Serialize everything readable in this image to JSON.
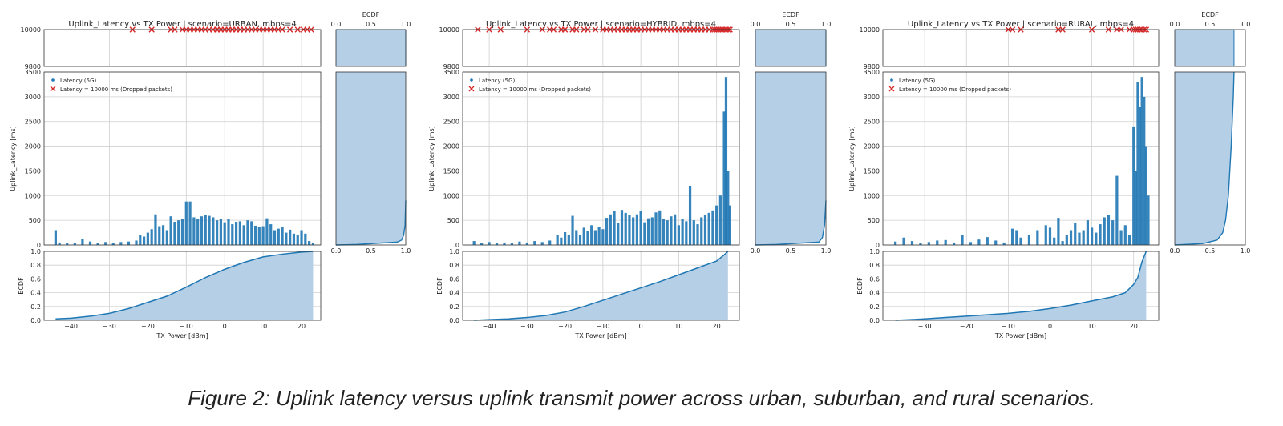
{
  "figure": {
    "caption": "Figure 2: Uplink latency versus uplink transmit power across urban, suburban, and rural scenarios."
  },
  "colors": {
    "series": "#1f77b4",
    "dropped": "#d62728",
    "ecdf_fill": "#b4cfe6",
    "ecdf_line": "#1f77b4",
    "grid": "#d0d0d0"
  },
  "chart_data": [
    {
      "type": "scatter",
      "title": "Uplink_Latency vs TX Power  |  scenario=URBAN, mbps=4",
      "xlabel": "TX Power [dBm]",
      "ylabel": "Uplink_Latency [ms]",
      "top_ylim": [
        9800,
        10000
      ],
      "top_yticks": [
        9800,
        10000
      ],
      "ylim": [
        0,
        3500
      ],
      "yticks": [
        0,
        500,
        1000,
        1500,
        2000,
        2500,
        3000,
        3500
      ],
      "xlim": [
        -47,
        25
      ],
      "xticks": [
        -40,
        -30,
        -20,
        -10,
        0,
        10,
        20
      ],
      "legend": [
        "Latency (5G)",
        "Latency = 10000 ms (Dropped packets)"
      ],
      "legend_position": "top-left",
      "grid": true,
      "latency_points": [
        [
          -44,
          300
        ],
        [
          -43,
          50
        ],
        [
          -41,
          40
        ],
        [
          -39,
          40
        ],
        [
          -37,
          120
        ],
        [
          -35,
          70
        ],
        [
          -33,
          40
        ],
        [
          -31,
          60
        ],
        [
          -29,
          40
        ],
        [
          -27,
          60
        ],
        [
          -25,
          70
        ],
        [
          -23,
          90
        ],
        [
          -22,
          200
        ],
        [
          -21,
          170
        ],
        [
          -20,
          250
        ],
        [
          -19,
          320
        ],
        [
          -18,
          620
        ],
        [
          -17,
          380
        ],
        [
          -16,
          400
        ],
        [
          -15,
          300
        ],
        [
          -14,
          580
        ],
        [
          -13,
          470
        ],
        [
          -12,
          500
        ],
        [
          -11,
          520
        ],
        [
          -10,
          880
        ],
        [
          -9,
          880
        ],
        [
          -8,
          560
        ],
        [
          -7,
          520
        ],
        [
          -6,
          580
        ],
        [
          -5,
          600
        ],
        [
          -4,
          590
        ],
        [
          -3,
          560
        ],
        [
          -2,
          500
        ],
        [
          -1,
          520
        ],
        [
          0,
          460
        ],
        [
          1,
          520
        ],
        [
          2,
          420
        ],
        [
          3,
          470
        ],
        [
          4,
          480
        ],
        [
          5,
          400
        ],
        [
          6,
          500
        ],
        [
          7,
          480
        ],
        [
          8,
          390
        ],
        [
          9,
          360
        ],
        [
          10,
          380
        ],
        [
          11,
          540
        ],
        [
          12,
          420
        ],
        [
          13,
          300
        ],
        [
          14,
          330
        ],
        [
          15,
          370
        ],
        [
          16,
          250
        ],
        [
          17,
          310
        ],
        [
          18,
          230
        ],
        [
          19,
          200
        ],
        [
          20,
          300
        ],
        [
          21,
          230
        ],
        [
          22,
          80
        ],
        [
          23,
          50
        ]
      ],
      "dropped_x": [
        -24,
        -19,
        -14,
        -13,
        -11,
        -10,
        -9,
        -8,
        -7,
        -6,
        -5,
        -4,
        -3,
        -2,
        -1,
        0,
        1,
        2,
        3,
        4,
        5,
        6,
        7,
        8,
        9,
        10,
        11,
        12,
        13,
        14,
        15,
        17,
        19,
        20.5,
        21.5,
        22.5
      ],
      "x_ecdf": [
        [
          -44,
          0.02
        ],
        [
          -40,
          0.03
        ],
        [
          -35,
          0.06
        ],
        [
          -30,
          0.1
        ],
        [
          -25,
          0.17
        ],
        [
          -20,
          0.26
        ],
        [
          -15,
          0.35
        ],
        [
          -10,
          0.48
        ],
        [
          -5,
          0.62
        ],
        [
          0,
          0.74
        ],
        [
          5,
          0.84
        ],
        [
          10,
          0.92
        ],
        [
          15,
          0.96
        ],
        [
          20,
          0.99
        ],
        [
          23,
          1.0
        ]
      ],
      "y_ecdf": [
        [
          0,
          0
        ],
        [
          0.3,
          10
        ],
        [
          0.88,
          60
        ],
        [
          0.94,
          100
        ],
        [
          0.97,
          200
        ],
        [
          0.99,
          400
        ],
        [
          1.0,
          900
        ]
      ],
      "y_ecdf_topfill": 1.0,
      "ecdf_label": "ECDF",
      "ecdf_ticks": [
        0.0,
        0.5,
        1.0
      ],
      "ecdf_yticks": [
        0.0,
        0.2,
        0.4,
        0.6,
        0.8,
        1.0
      ]
    },
    {
      "type": "scatter",
      "title": "Uplink_Latency vs TX Power  |  scenario=HYBRID, mbps=4",
      "xlabel": "TX Power [dBm]",
      "ylabel": "Uplink_Latency [ms]",
      "top_ylim": [
        9800,
        10000
      ],
      "top_yticks": [
        9800,
        10000
      ],
      "ylim": [
        0,
        3500
      ],
      "yticks": [
        0,
        500,
        1000,
        1500,
        2000,
        2500,
        3000,
        3500
      ],
      "xlim": [
        -47,
        26
      ],
      "xticks": [
        -40,
        -30,
        -20,
        -10,
        0,
        10,
        20
      ],
      "legend": [
        "Latency (5G)",
        "Latency = 10000 ms (Dropped packets)"
      ],
      "legend_position": "top-left",
      "grid": true,
      "latency_points": [
        [
          -44,
          80
        ],
        [
          -42,
          40
        ],
        [
          -40,
          60
        ],
        [
          -38,
          40
        ],
        [
          -36,
          50
        ],
        [
          -34,
          40
        ],
        [
          -32,
          70
        ],
        [
          -30,
          50
        ],
        [
          -28,
          80
        ],
        [
          -26,
          60
        ],
        [
          -24,
          90
        ],
        [
          -22,
          200
        ],
        [
          -21,
          150
        ],
        [
          -20,
          260
        ],
        [
          -19,
          200
        ],
        [
          -18,
          590
        ],
        [
          -17,
          300
        ],
        [
          -16,
          200
        ],
        [
          -15,
          350
        ],
        [
          -14,
          280
        ],
        [
          -13,
          400
        ],
        [
          -12,
          300
        ],
        [
          -11,
          370
        ],
        [
          -10,
          320
        ],
        [
          -9,
          550
        ],
        [
          -8,
          620
        ],
        [
          -7,
          690
        ],
        [
          -6,
          440
        ],
        [
          -5,
          710
        ],
        [
          -4,
          650
        ],
        [
          -3,
          600
        ],
        [
          -2,
          560
        ],
        [
          -1,
          620
        ],
        [
          0,
          680
        ],
        [
          1,
          460
        ],
        [
          2,
          540
        ],
        [
          3,
          560
        ],
        [
          4,
          660
        ],
        [
          5,
          700
        ],
        [
          6,
          530
        ],
        [
          7,
          500
        ],
        [
          8,
          580
        ],
        [
          9,
          620
        ],
        [
          10,
          400
        ],
        [
          11,
          520
        ],
        [
          12,
          480
        ],
        [
          13,
          1200
        ],
        [
          14,
          500
        ],
        [
          15,
          420
        ],
        [
          16,
          560
        ],
        [
          17,
          600
        ],
        [
          18,
          650
        ],
        [
          19,
          700
        ],
        [
          20,
          800
        ],
        [
          21,
          1000
        ],
        [
          22,
          2700
        ],
        [
          22.5,
          3400
        ],
        [
          23,
          1500
        ],
        [
          23.5,
          800
        ]
      ],
      "dropped_x": [
        -43,
        -40,
        -37,
        -30,
        -26,
        -24,
        -23,
        -21,
        -20,
        -18,
        -17,
        -15,
        -14,
        -12,
        -10,
        -9,
        -8,
        -7,
        -6,
        -5,
        -4,
        -3,
        -2,
        -1,
        0,
        1,
        2,
        3,
        4,
        5,
        6,
        7,
        8,
        9,
        10,
        11,
        12,
        13,
        14,
        15,
        16,
        17,
        18,
        19,
        19.5,
        20,
        20.5,
        21,
        21.5,
        22,
        22.5,
        23,
        23.5
      ],
      "x_ecdf": [
        [
          -44,
          0.0
        ],
        [
          -40,
          0.01
        ],
        [
          -35,
          0.02
        ],
        [
          -30,
          0.04
        ],
        [
          -25,
          0.07
        ],
        [
          -20,
          0.12
        ],
        [
          -15,
          0.2
        ],
        [
          -10,
          0.29
        ],
        [
          -5,
          0.38
        ],
        [
          0,
          0.47
        ],
        [
          5,
          0.56
        ],
        [
          10,
          0.66
        ],
        [
          15,
          0.76
        ],
        [
          20,
          0.86
        ],
        [
          22,
          0.95
        ],
        [
          23,
          1.0
        ]
      ],
      "y_ecdf": [
        [
          0,
          0
        ],
        [
          0.3,
          10
        ],
        [
          0.9,
          60
        ],
        [
          0.95,
          150
        ],
        [
          0.98,
          400
        ],
        [
          1.0,
          900
        ]
      ],
      "y_ecdf_topfill": 1.0,
      "ecdf_label": "ECDF",
      "ecdf_ticks": [
        0.0,
        0.5,
        1.0
      ],
      "ecdf_yticks": [
        0.0,
        0.2,
        0.4,
        0.6,
        0.8,
        1.0
      ]
    },
    {
      "type": "scatter",
      "title": "Uplink_Latency vs TX Power  |  scenario=RURAL, mbps=4",
      "xlabel": "TX Power [dBm]",
      "ylabel": "Uplink_Latency [ms]",
      "top_ylim": [
        9800,
        10000
      ],
      "top_yticks": [
        9800,
        10000
      ],
      "ylim": [
        0,
        3500
      ],
      "yticks": [
        0,
        500,
        1000,
        1500,
        2000,
        2500,
        3000,
        3500
      ],
      "xlim": [
        -40,
        26
      ],
      "xticks": [
        -30,
        -20,
        -10,
        0,
        10,
        20
      ],
      "legend": [
        "Latency (5G)",
        "Latency = 10000 ms (Dropped packets)"
      ],
      "legend_position": "top-left",
      "grid": true,
      "latency_points": [
        [
          -37,
          70
        ],
        [
          -35,
          150
        ],
        [
          -33,
          80
        ],
        [
          -31,
          40
        ],
        [
          -29,
          60
        ],
        [
          -27,
          90
        ],
        [
          -25,
          100
        ],
        [
          -23,
          50
        ],
        [
          -21,
          200
        ],
        [
          -19,
          60
        ],
        [
          -17,
          110
        ],
        [
          -15,
          160
        ],
        [
          -13,
          90
        ],
        [
          -11,
          50
        ],
        [
          -9,
          330
        ],
        [
          -8,
          300
        ],
        [
          -7,
          150
        ],
        [
          -5,
          200
        ],
        [
          -3,
          300
        ],
        [
          -1,
          400
        ],
        [
          0,
          350
        ],
        [
          1,
          150
        ],
        [
          2,
          550
        ],
        [
          3,
          80
        ],
        [
          4,
          200
        ],
        [
          5,
          300
        ],
        [
          6,
          450
        ],
        [
          7,
          250
        ],
        [
          8,
          300
        ],
        [
          9,
          500
        ],
        [
          10,
          350
        ],
        [
          11,
          250
        ],
        [
          12,
          420
        ],
        [
          13,
          560
        ],
        [
          14,
          600
        ],
        [
          15,
          500
        ],
        [
          16,
          1400
        ],
        [
          17,
          300
        ],
        [
          18,
          400
        ],
        [
          19,
          200
        ],
        [
          20,
          2400
        ],
        [
          20.5,
          1500
        ],
        [
          21,
          3300
        ],
        [
          21.5,
          2800
        ],
        [
          22,
          3400
        ],
        [
          22.5,
          3000
        ],
        [
          23,
          2000
        ],
        [
          23.5,
          1000
        ]
      ],
      "dropped_x": [
        -10,
        -9,
        -7,
        2,
        3,
        10,
        14,
        16,
        17,
        19,
        20,
        20.5,
        21,
        21.5,
        22,
        22.5,
        23
      ],
      "x_ecdf": [
        [
          -37,
          0.0
        ],
        [
          -30,
          0.02
        ],
        [
          -25,
          0.04
        ],
        [
          -20,
          0.06
        ],
        [
          -15,
          0.08
        ],
        [
          -10,
          0.1
        ],
        [
          -5,
          0.13
        ],
        [
          0,
          0.17
        ],
        [
          5,
          0.22
        ],
        [
          10,
          0.28
        ],
        [
          15,
          0.34
        ],
        [
          18,
          0.4
        ],
        [
          20,
          0.52
        ],
        [
          21,
          0.62
        ],
        [
          22,
          0.85
        ],
        [
          23,
          1.0
        ]
      ],
      "y_ecdf": [
        [
          0,
          0
        ],
        [
          0.4,
          30
        ],
        [
          0.6,
          100
        ],
        [
          0.68,
          250
        ],
        [
          0.72,
          500
        ],
        [
          0.76,
          1000
        ],
        [
          0.8,
          2000
        ],
        [
          0.83,
          3000
        ],
        [
          0.84,
          3500
        ]
      ],
      "y_ecdf_topfill": 0.84,
      "ecdf_label": "ECDF",
      "ecdf_ticks": [
        0.0,
        0.5,
        1.0
      ],
      "ecdf_yticks": [
        0.0,
        0.2,
        0.4,
        0.6,
        0.8,
        1.0
      ]
    }
  ]
}
